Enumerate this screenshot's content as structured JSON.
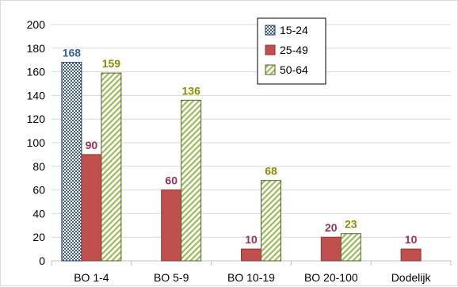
{
  "chart_data": {
    "type": "bar",
    "categories": [
      "BO 1-4",
      "BO 5-9",
      "BO 10-19",
      "BO 20-100",
      "Dodelijk"
    ],
    "series": [
      {
        "name": "15-24",
        "values": [
          168,
          null,
          null,
          null,
          null
        ],
        "color": "#3a5f9c",
        "label_color": "#3a5f9c",
        "pattern": "checker"
      },
      {
        "name": "25-49",
        "values": [
          90,
          60,
          10,
          20,
          10
        ],
        "color": "#c0504d",
        "label_color": "#a0305a",
        "pattern": "solid"
      },
      {
        "name": "50-64",
        "values": [
          159,
          136,
          68,
          23,
          null
        ],
        "color": "#9bbb59",
        "label_color": "#8c8c00",
        "pattern": "diagonal"
      }
    ],
    "ylim": [
      0,
      200
    ],
    "yticks": [
      0,
      20,
      40,
      60,
      80,
      100,
      120,
      140,
      160,
      180,
      200
    ],
    "grid": true,
    "legend_position": "top-right",
    "title": "",
    "xlabel": "",
    "ylabel": ""
  }
}
